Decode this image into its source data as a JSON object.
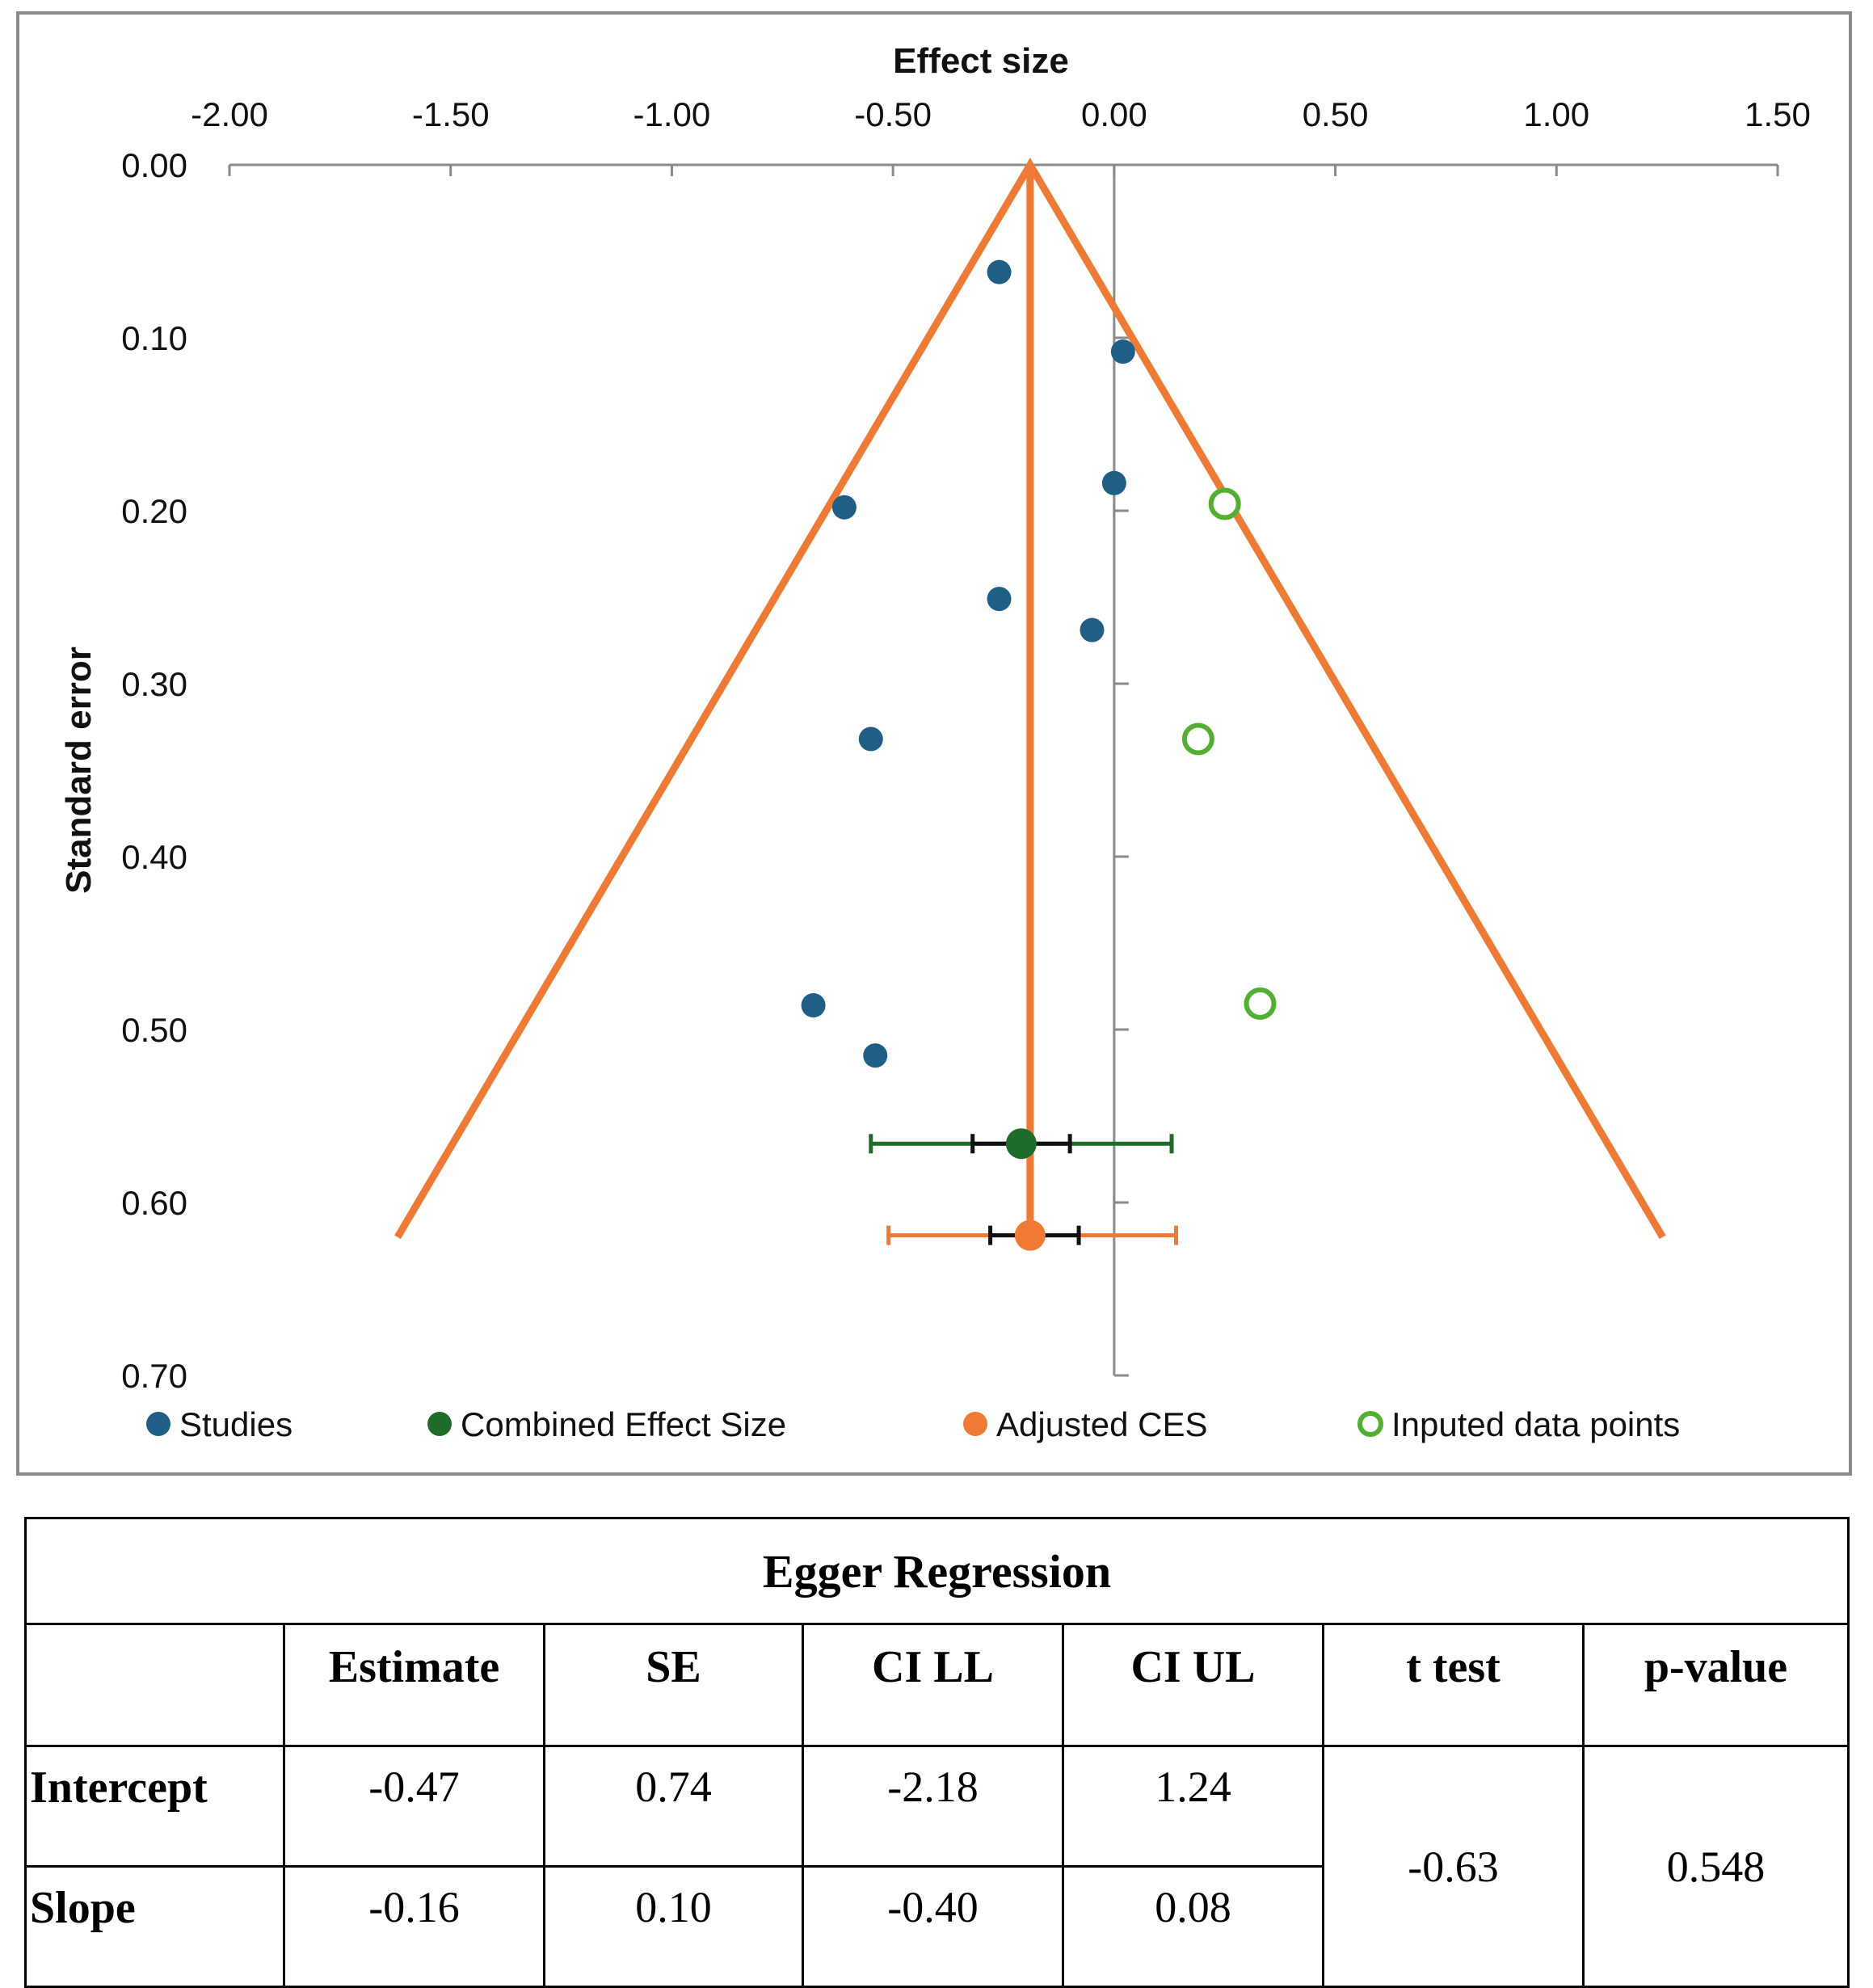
{
  "chart_data": {
    "type": "scatter",
    "title": "",
    "xlabel": "Effect size",
    "ylabel": "Standard error",
    "xlim": [
      -2.0,
      1.5
    ],
    "ylim": [
      0.0,
      0.7
    ],
    "x_ticks": [
      "-2.00",
      "-1.50",
      "-1.00",
      "-0.50",
      "0.00",
      "0.50",
      "1.00",
      "1.50"
    ],
    "y_ticks": [
      "0.00",
      "0.10",
      "0.20",
      "0.30",
      "0.40",
      "0.50",
      "0.60",
      "0.70"
    ],
    "x_axis_position": "top",
    "y_axis_inverted": true,
    "funnel": {
      "center": -0.19,
      "apex_se": 0.0,
      "base_se": 0.62,
      "left_x": -1.62,
      "right_x": 1.24,
      "color": "#f07a33"
    },
    "series": [
      {
        "name": "Studies",
        "marker": "filled-circle",
        "color": "#1f5f86",
        "points": [
          [
            -0.26,
            0.062
          ],
          [
            0.02,
            0.108
          ],
          [
            0.0,
            0.184
          ],
          [
            -0.61,
            0.198
          ],
          [
            -0.26,
            0.251
          ],
          [
            -0.05,
            0.269
          ],
          [
            -0.55,
            0.332
          ],
          [
            -0.68,
            0.486
          ],
          [
            -0.54,
            0.515
          ]
        ]
      },
      {
        "name": "Combined Effect Size",
        "marker": "filled-circle",
        "color": "#1e6b2a",
        "points": [
          [
            -0.21,
            0.566
          ]
        ],
        "ci": [
          -0.55,
          0.13
        ],
        "inner_ci": [
          -0.32,
          -0.1
        ]
      },
      {
        "name": "Adjusted CES",
        "marker": "filled-circle",
        "color": "#f07a33",
        "points": [
          [
            -0.19,
            0.619
          ]
        ],
        "ci": [
          -0.51,
          0.14
        ],
        "inner_ci": [
          -0.28,
          -0.08
        ]
      },
      {
        "name": "Inputed data points",
        "marker": "open-circle",
        "color": "#52b030",
        "points": [
          [
            0.25,
            0.196
          ],
          [
            0.19,
            0.332
          ],
          [
            0.33,
            0.485
          ]
        ]
      }
    ],
    "legend_position": "bottom"
  },
  "colors": {
    "funnel": "#f07a33",
    "studies": "#1f5f86",
    "combined": "#1e6b2a",
    "adjusted": "#f07a33",
    "inputed": "#52b030",
    "axis": "#8a8a8a",
    "ci_inner": "#111111"
  },
  "table": {
    "title": "Egger Regression",
    "headers": [
      "",
      "Estimate",
      "SE",
      "CI LL",
      "CI UL",
      "t test",
      "p-value"
    ],
    "rows": [
      {
        "label": "Intercept",
        "estimate": "-0.47",
        "se": "0.74",
        "ci_ll": "-2.18",
        "ci_ul": "1.24"
      },
      {
        "label": "Slope",
        "estimate": "-0.16",
        "se": "0.10",
        "ci_ll": "-0.40",
        "ci_ul": "0.08"
      }
    ],
    "t_test": "-0.63",
    "p_value": "0.548"
  }
}
